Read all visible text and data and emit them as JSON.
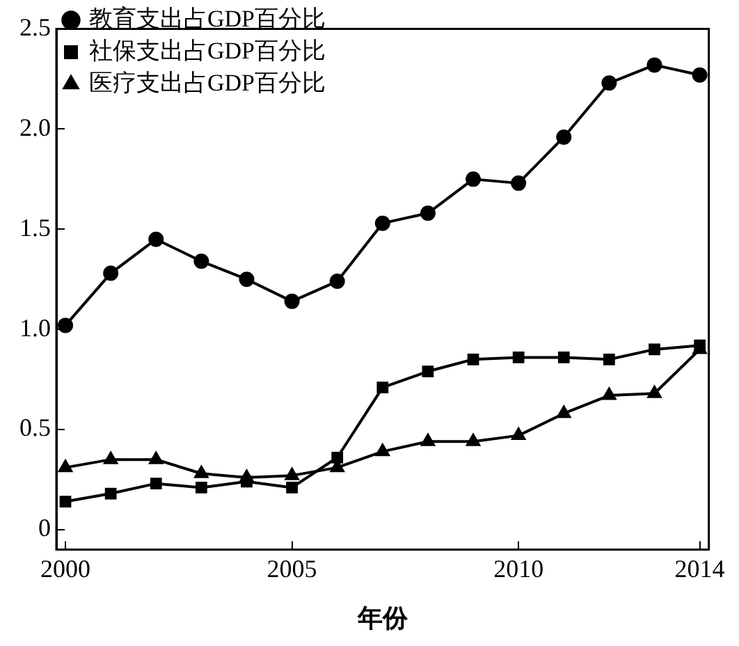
{
  "chart_data": {
    "type": "line",
    "xlabel": "年份",
    "x": [
      2000,
      2001,
      2002,
      2003,
      2004,
      2005,
      2006,
      2007,
      2008,
      2009,
      2010,
      2011,
      2012,
      2013,
      2014
    ],
    "series": [
      {
        "name": "教育支出占GDP百分比",
        "color": "#000000",
        "marker": "circle",
        "values": [
          1.02,
          1.28,
          1.45,
          1.34,
          1.25,
          1.14,
          1.24,
          1.53,
          1.58,
          1.75,
          1.73,
          1.96,
          2.23,
          2.32,
          2.27
        ]
      },
      {
        "name": "社保支出占GDP百分比",
        "color": "#000000",
        "marker": "square",
        "values": [
          0.14,
          0.18,
          0.23,
          0.21,
          0.24,
          0.21,
          0.36,
          0.71,
          0.79,
          0.85,
          0.86,
          0.86,
          0.85,
          0.9,
          0.92
        ]
      },
      {
        "name": "医疗支出占GDP百分比",
        "color": "#000000",
        "marker": "triangle",
        "values": [
          0.31,
          0.35,
          0.35,
          0.28,
          0.26,
          0.27,
          0.31,
          0.39,
          0.44,
          0.44,
          0.47,
          0.58,
          0.67,
          0.68,
          0.9
        ]
      }
    ],
    "xlim": [
      1999.8,
      2014.2
    ],
    "xticks": [
      2000,
      2005,
      2010,
      2014
    ],
    "ylim": [
      -0.1,
      2.5
    ],
    "yticks": [
      0,
      0.5,
      {
        "value": 1,
        "label": "1.0"
      },
      1.5,
      {
        "value": 2,
        "label": "2.0"
      },
      2.5
    ],
    "grid": false,
    "legend": "top left",
    "line_style": "solid"
  }
}
